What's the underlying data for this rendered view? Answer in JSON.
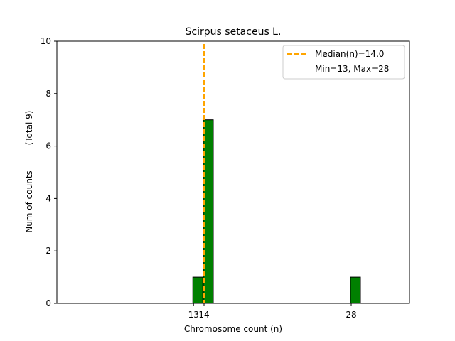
{
  "chart_data": {
    "type": "bar",
    "title": "Scirpus setaceus L.",
    "xlabel": "Chromosome count (n)",
    "ylabel": "Num of counts",
    "ylabel_note": "(Total 9)",
    "x_ticks": [
      13,
      14,
      28
    ],
    "y_ticks": [
      0,
      2,
      4,
      6,
      8,
      10
    ],
    "ylim": [
      0,
      10
    ],
    "bars": [
      {
        "x": 13,
        "count": 1
      },
      {
        "x": 14,
        "count": 7
      },
      {
        "x": 28,
        "count": 1
      }
    ],
    "median": 14.0,
    "legend": {
      "median_label": "Median(n)=14.0",
      "range_label": "Min=13, Max=28",
      "placement": "top-right"
    },
    "colors": {
      "bar_fill": "#008000",
      "bar_edge": "#000000",
      "median_line": "#FFA500"
    }
  }
}
